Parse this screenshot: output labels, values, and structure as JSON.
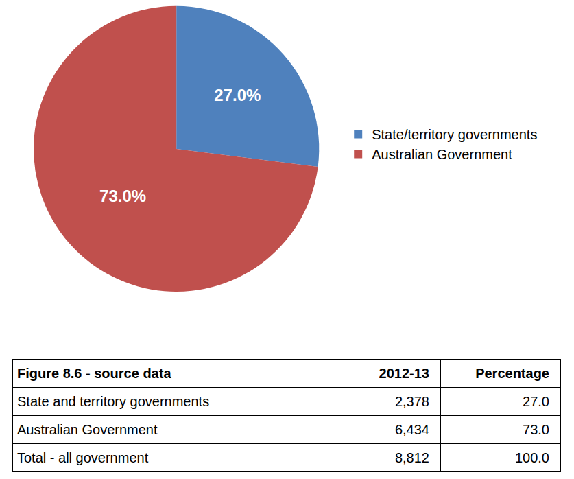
{
  "chart_data": {
    "type": "pie",
    "categories": [
      "State/territory governments",
      "Australian Government"
    ],
    "values": [
      27.0,
      73.0
    ],
    "value_labels": [
      "27.0%",
      "73.0%"
    ],
    "colors": [
      "#4f81bd",
      "#c0504d"
    ],
    "data_labels": true,
    "legend": "right"
  },
  "table": {
    "header": [
      "Figure 8.6 - source data",
      "2012-13",
      "Percentage"
    ],
    "rows": [
      [
        "State and territory governments",
        "2,378",
        "27.0"
      ],
      [
        "Australian Government",
        "6,434",
        "73.0"
      ],
      [
        "Total - all government",
        "8,812",
        "100.0"
      ]
    ]
  }
}
